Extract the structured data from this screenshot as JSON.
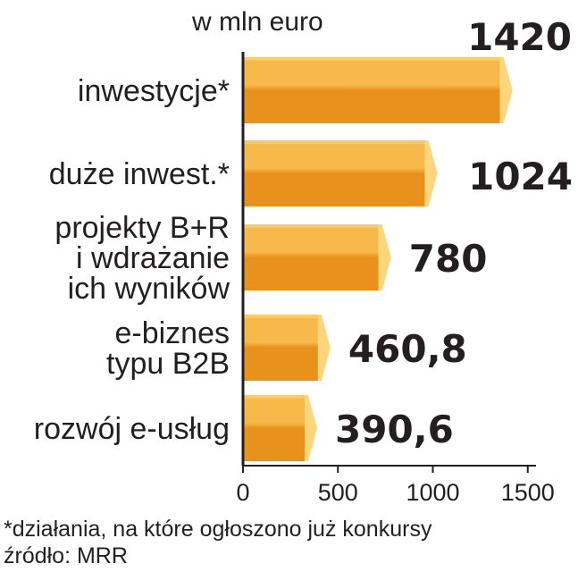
{
  "chart_data": {
    "type": "bar",
    "orientation": "horizontal",
    "subtitle": "w mln euro",
    "categories": [
      [
        "inwestycje*"
      ],
      [
        "duże inwest.*"
      ],
      [
        "projekty B+R",
        "i wdrażanie",
        "ich wyników"
      ],
      [
        "e-biznes",
        "typu B2B"
      ],
      [
        "rozwój e-usług"
      ]
    ],
    "values": [
      1420,
      1024,
      780,
      460.8,
      390.6
    ],
    "value_labels": [
      "1420",
      "1024",
      "780",
      "460,8",
      "390,6"
    ],
    "xlim": [
      0,
      1500
    ],
    "xticks": [
      0,
      500,
      1000,
      1500
    ],
    "grid": false,
    "legend": "none"
  },
  "footnotes": {
    "note": "*działania, na które ogłoszono już konkursy",
    "source": "źródło: MRR"
  },
  "colors": {
    "bar_top": "#f7b94a",
    "bar_bottom": "#e8921d",
    "bar_cap": "#fcd67c",
    "axis": "#231f20",
    "text": "#231f20"
  }
}
